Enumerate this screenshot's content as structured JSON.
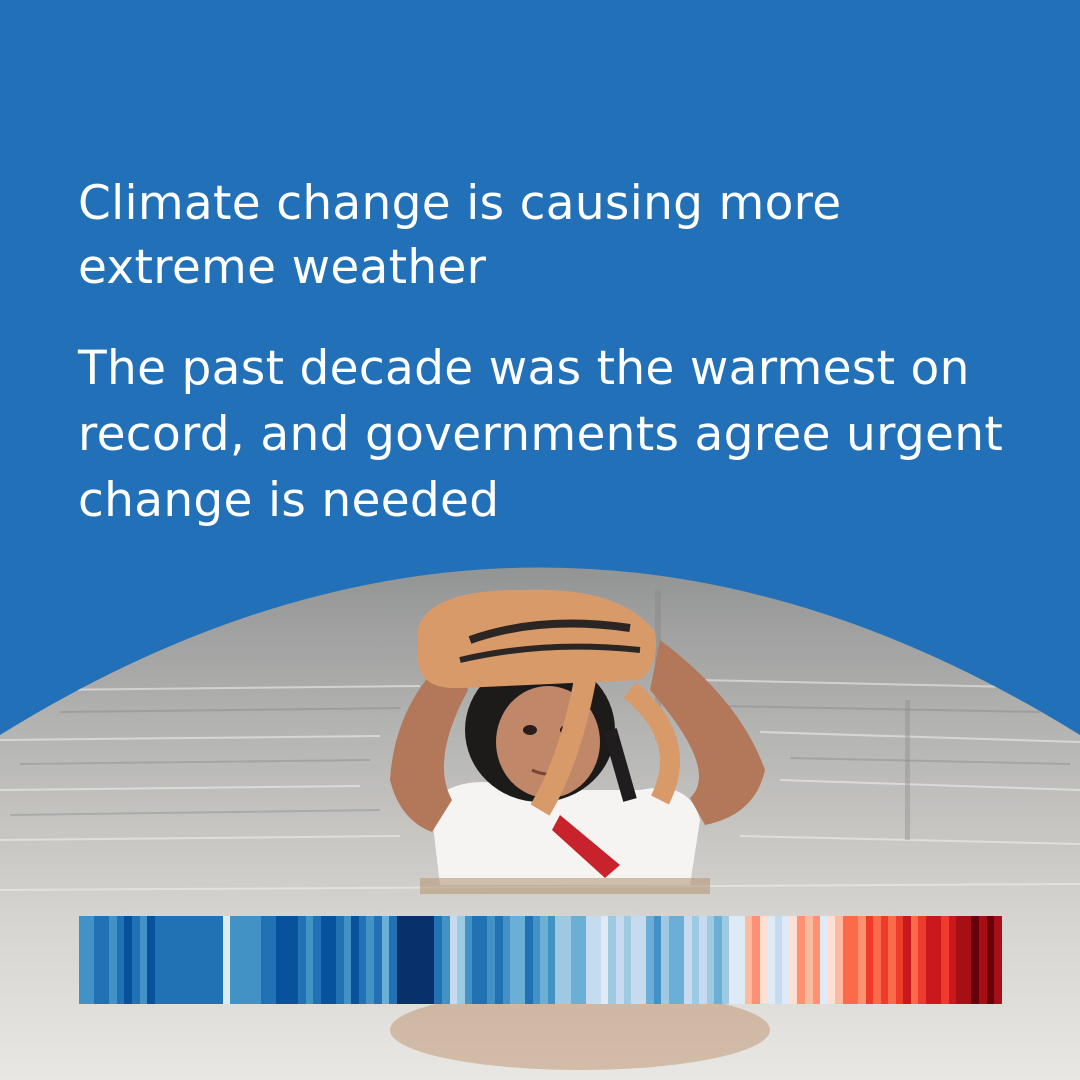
{
  "headline": "Climate change is causing more extreme weather",
  "subheadline": "The past decade was the warmest on record, and governments agree urgent change is needed",
  "colors": {
    "background": "#2270b7",
    "text": "#ffffff"
  },
  "warming_stripes": {
    "colors": [
      "#4292c6",
      "#4292c6",
      "#2171b5",
      "#2171b5",
      "#4292c6",
      "#2171b5",
      "#08519c",
      "#2171b5",
      "#4292c6",
      "#08519c",
      "#2171b5",
      "#2171b5",
      "#2171b5",
      "#2171b5",
      "#2171b5",
      "#2171b5",
      "#2171b5",
      "#2171b5",
      "#2171b5",
      "#deebf7",
      "#4292c6",
      "#4292c6",
      "#4292c6",
      "#4292c6",
      "#2171b5",
      "#2171b5",
      "#08519c",
      "#08519c",
      "#08519c",
      "#2171b5",
      "#4292c6",
      "#2171b5",
      "#08519c",
      "#08519c",
      "#2171b5",
      "#4292c6",
      "#08519c",
      "#2171b5",
      "#4292c6",
      "#2171b5",
      "#6baed6",
      "#2171b5",
      "#08306b",
      "#08306b",
      "#08306b",
      "#08306b",
      "#08306b",
      "#2171b5",
      "#4292c6",
      "#c6dbef",
      "#9ecae1",
      "#4292c6",
      "#2171b5",
      "#2171b5",
      "#4292c6",
      "#2171b5",
      "#4292c6",
      "#6baed6",
      "#6baed6",
      "#2171b5",
      "#4292c6",
      "#6baed6",
      "#4292c6",
      "#9ecae1",
      "#9ecae1",
      "#6baed6",
      "#6baed6",
      "#c6dbef",
      "#c6dbef",
      "#deebf7",
      "#9ecae1",
      "#c6dbef",
      "#9ecae1",
      "#c6dbef",
      "#c6dbef",
      "#6baed6",
      "#4292c6",
      "#9ecae1",
      "#6baed6",
      "#6baed6",
      "#c6dbef",
      "#9ecae1",
      "#c6dbef",
      "#9ecae1",
      "#6baed6",
      "#9ecae1",
      "#deebf7",
      "#deebf7",
      "#fcbba1",
      "#fc9272",
      "#fee0d2",
      "#deebf7",
      "#c6dbef",
      "#deebf7",
      "#fee0d2",
      "#fc9272",
      "#fcbba1",
      "#fc9272",
      "#deebf7",
      "#fee0d2",
      "#fcbba1",
      "#fb6a4a",
      "#fb6a4a",
      "#fc9272",
      "#ef3b2c",
      "#fb6a4a",
      "#ef3b2c",
      "#fb6a4a",
      "#ef3b2c",
      "#cb181d",
      "#fb6a4a",
      "#ef3b2c",
      "#cb181d",
      "#cb181d",
      "#ef3b2c",
      "#cb181d",
      "#a50f15",
      "#a50f15",
      "#67000d",
      "#a50f15",
      "#67000d",
      "#a50f15"
    ]
  }
}
